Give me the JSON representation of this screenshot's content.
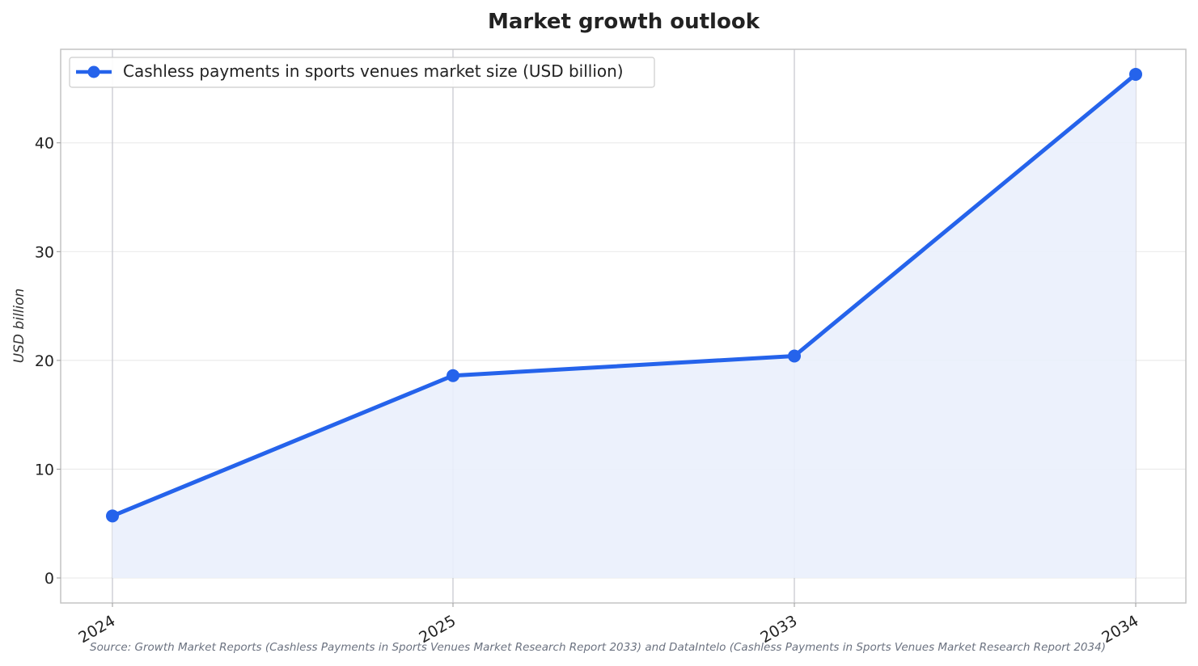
{
  "chart_data": {
    "type": "line",
    "title": "Market growth outlook",
    "xlabel": "",
    "ylabel": "USD billion",
    "categories": [
      "2024",
      "2025",
      "2033",
      "2034"
    ],
    "series": [
      {
        "name": "Cashless payments in sports venues market size (USD billion)",
        "values": [
          5.7,
          18.6,
          20.4,
          46.3
        ],
        "color": "#2563eb",
        "fill": "area"
      }
    ],
    "ylim": [
      -2.3,
      48.6
    ],
    "yticks": [
      0,
      10,
      20,
      30,
      40
    ],
    "grid": true,
    "legend": "top-left",
    "source": "Source: Growth Market Reports (Cashless Payments in Sports Venues Market Research Report 2033) and DataIntelo (Cashless Payments in Sports Venues Market Research Report 2034)"
  },
  "colors": {
    "line": "#2563eb",
    "area": "#eaf0fc",
    "grid": "#ebebeb",
    "vgrid": "#c8cad1",
    "frame": "#c4c4c4"
  }
}
